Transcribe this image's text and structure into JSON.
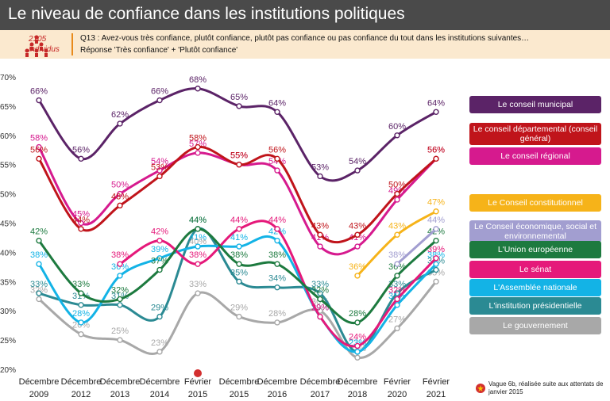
{
  "title": "Le niveau de confiance dans les institutions politiques",
  "sample": {
    "count": "2105",
    "label": "individus"
  },
  "question": "Q13 : Avez-vous très confiance, plutôt confiance, plutôt pas confiance ou pas confiance du tout dans les institutions suivantes…",
  "subquestion": "Réponse 'Très confiance' + 'Plutôt confiance'",
  "footnote": "Vague 6b, réalisée suite aux attentats de janvier 2015",
  "chart_data": {
    "type": "line",
    "categories": [
      "Décembre 2009",
      "Décembre 2012",
      "Décembre 2013",
      "Décembre 2014",
      "Février 2015",
      "Décembre 2015",
      "Décembre 2016",
      "Décembre 2017",
      "Décembre 2018",
      "Février 2020",
      "Février 2021"
    ],
    "y_tick_labels": [
      "20%",
      "25%",
      "30%",
      "35%",
      "40%",
      "45%",
      "50%",
      "55%",
      "60%",
      "65%",
      "70%"
    ],
    "ylim": [
      20,
      70
    ],
    "series": [
      {
        "name": "Le conseil municipal",
        "color": "#5b2367",
        "values": [
          66,
          56,
          62,
          66,
          68,
          65,
          64,
          53,
          54,
          60,
          64
        ],
        "labels": [
          "66%",
          "56%",
          "62%",
          "66%",
          "68%",
          "65%",
          "64%",
          "53%",
          "54%",
          "60%",
          "64%"
        ]
      },
      {
        "name": "Le conseil départemental (conseil général)",
        "color": "#c0141b",
        "values": [
          56,
          44,
          48,
          53,
          58,
          55,
          56,
          43,
          43,
          50,
          56
        ],
        "labels": [
          "56%",
          "44%",
          "48%",
          "53%",
          "58%",
          "55%",
          "56%",
          "43%",
          "43%",
          "50%",
          "56%"
        ]
      },
      {
        "name": "Le conseil régional",
        "color": "#d61a8e",
        "values": [
          58,
          45,
          50,
          54,
          57,
          55,
          54,
          41,
          41,
          49,
          56
        ],
        "labels": [
          "58%",
          "45%",
          "50%",
          "54%",
          "57%",
          "55%",
          "54%",
          "41%",
          "41%",
          "49%",
          "56%"
        ]
      },
      {
        "name": "Le Conseil constitutionnel",
        "color": "#f6b319",
        "values": [
          null,
          null,
          null,
          null,
          null,
          null,
          null,
          null,
          36,
          43,
          47
        ],
        "labels": [
          "",
          "",
          "",
          "",
          "",
          "",
          "",
          "",
          "36%",
          "43%",
          "47%"
        ]
      },
      {
        "name": "Le Conseil économique, social et environnemental",
        "color": "#a29ed0",
        "values": [
          null,
          null,
          null,
          null,
          null,
          null,
          null,
          null,
          null,
          38,
          44
        ],
        "labels": [
          "",
          "",
          "",
          "",
          "",
          "",
          "",
          "",
          "",
          "38%",
          "44%"
        ]
      },
      {
        "name": "L'Union européenne",
        "color": "#1d7a3f",
        "values": [
          42,
          33,
          32,
          37,
          44,
          38,
          38,
          32,
          28,
          36,
          42
        ],
        "labels": [
          "42%",
          "33%",
          "32%",
          "37%",
          "44%",
          "38%",
          "38%",
          "32%",
          "28%",
          "36%",
          "42%"
        ]
      },
      {
        "name": "Le sénat",
        "color": "#e5197a",
        "values": [
          null,
          null,
          38,
          42,
          38,
          44,
          44,
          29,
          24,
          32,
          39
        ],
        "labels": [
          "",
          "",
          "38%",
          "42%",
          "38%",
          "44%",
          "44%",
          "29%",
          "24%",
          "32%",
          "39%"
        ]
      },
      {
        "name": "L'Assemblée nationale",
        "color": "#13b3e6",
        "values": [
          38,
          28,
          36,
          39,
          41,
          41,
          42,
          29,
          23,
          31,
          38
        ],
        "labels": [
          "38%",
          "28%",
          "36%",
          "39%",
          "41%",
          "41%",
          "42%",
          "29%",
          "23%",
          "31%",
          "38%"
        ]
      },
      {
        "name": "L'institution présidentielle",
        "color": "#2b8a93",
        "values": [
          33,
          31,
          31,
          29,
          44,
          35,
          34,
          33,
          23,
          33,
          37
        ],
        "labels": [
          "33%",
          "31%",
          "31%",
          "29%",
          "44%",
          "35%",
          "34%",
          "33%",
          "23%",
          "33%",
          "37%"
        ]
      },
      {
        "name": "Le gouvernement",
        "color": "#a8a8a8",
        "values": [
          32,
          26,
          25,
          23,
          33,
          29,
          28,
          30,
          22,
          27,
          35
        ],
        "labels": [
          "32%",
          "26%",
          "25%",
          "23%",
          "33%",
          "29%",
          "28%",
          "30%",
          "22%",
          "27%",
          "35%"
        ]
      }
    ],
    "extra_labels": [
      "40%",
      "35%"
    ],
    "legend_position": "right",
    "grid": false
  }
}
